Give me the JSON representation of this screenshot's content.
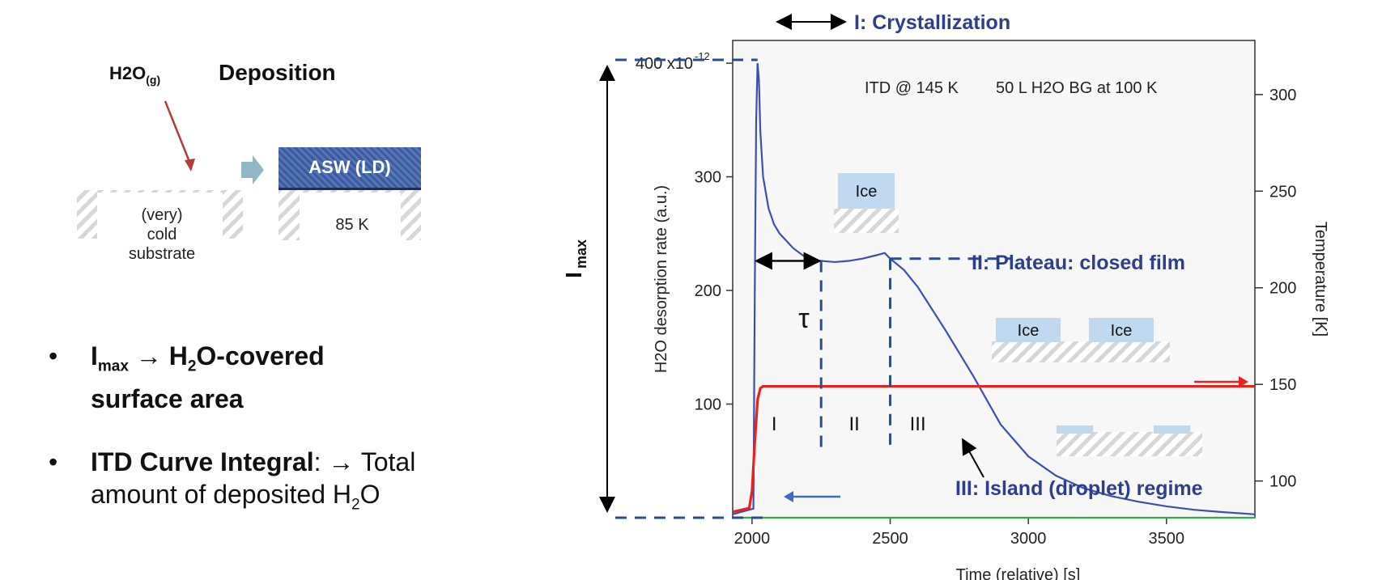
{
  "left_panel": {
    "gas_label": "H2O",
    "gas_sub": "(g)",
    "deposition_title": "Deposition",
    "asw_label": "ASW (LD)",
    "substrate_label": [
      "(very)",
      "cold",
      "substrate"
    ],
    "temp_label": "85 K",
    "bullets": [
      {
        "line1_pre": "I",
        "line1_sub": "max",
        "line1_post": " → H",
        "line1_sub2": "2",
        "line1_tail": "O-covered",
        "line2": "surface area"
      },
      {
        "bold": "ITD Curve Integral",
        "line1_rest": ": → Total",
        "line2_pre": "amount of deposited H",
        "line2_sub": "2",
        "line2_tail": "O"
      }
    ],
    "bullet_char": "•"
  },
  "chart_data": {
    "type": "line",
    "title": "",
    "xlabel": "Time (relative) [s]",
    "ylabel": "H2O desorption rate (a.u.)",
    "y2label": "Temperature [K]",
    "xlim": [
      1930,
      3820
    ],
    "ylim": [
      0,
      420
    ],
    "y2lim": [
      81,
      328
    ],
    "x_ticks": [
      2000,
      2500,
      3000,
      3500
    ],
    "y_ticks": [
      100,
      200,
      300
    ],
    "y_top_tick": 400,
    "y_top_tick_label": "400 x10",
    "y_top_tick_exp": "-12",
    "y2_ticks": [
      100,
      150,
      200,
      250,
      300
    ],
    "annotation_header": "ITD @ 145 K",
    "annotation_header2": "50 L H2O BG at 100 K",
    "series": [
      {
        "values_x": [
          1930,
          2005,
          2010,
          2015,
          2020,
          2025,
          2030,
          2040,
          2060,
          2080,
          2100,
          2150,
          2200,
          2250,
          2300,
          2350,
          2400,
          2450,
          2480,
          2500,
          2550,
          2600,
          2700,
          2800,
          2900,
          3000,
          3100,
          3200,
          3300,
          3400,
          3500,
          3600,
          3700,
          3820
        ],
        "values_y": [
          3,
          8,
          200,
          350,
          400,
          385,
          340,
          300,
          272,
          258,
          250,
          237,
          228,
          226,
          225,
          226,
          228,
          231,
          233,
          228,
          218,
          203,
          165,
          125,
          82,
          54,
          37,
          26,
          19,
          14,
          10,
          7,
          5,
          3
        ],
        "color": "#3c4fb0"
      },
      {
        "values_x": [
          1930,
          1990,
          2000,
          2010,
          2020,
          2030,
          2040,
          3820
        ],
        "values_y": [
          84,
          86,
          95,
          120,
          142,
          148,
          149,
          149
        ],
        "axis": "y2",
        "color": "#e8231e"
      },
      {
        "values_x": [
          1930,
          3820
        ],
        "values_y": [
          0,
          0
        ],
        "color": "#2cae44"
      }
    ],
    "phases": [
      "I",
      "II",
      "III"
    ],
    "phase_boundaries": [
      2250,
      2500
    ],
    "tau_label": "τ",
    "imax_label": "I",
    "imax_sub": "max",
    "labels": {
      "crystallization": "I: Crystallization",
      "plateau": "II: Plateau: closed film",
      "island": "III: Island (droplet) regime",
      "ice": "Ice"
    },
    "colors": {
      "blue_text": "#2c3e8c",
      "dash": "#2a4f88",
      "ice": "#bfdaf0"
    }
  }
}
